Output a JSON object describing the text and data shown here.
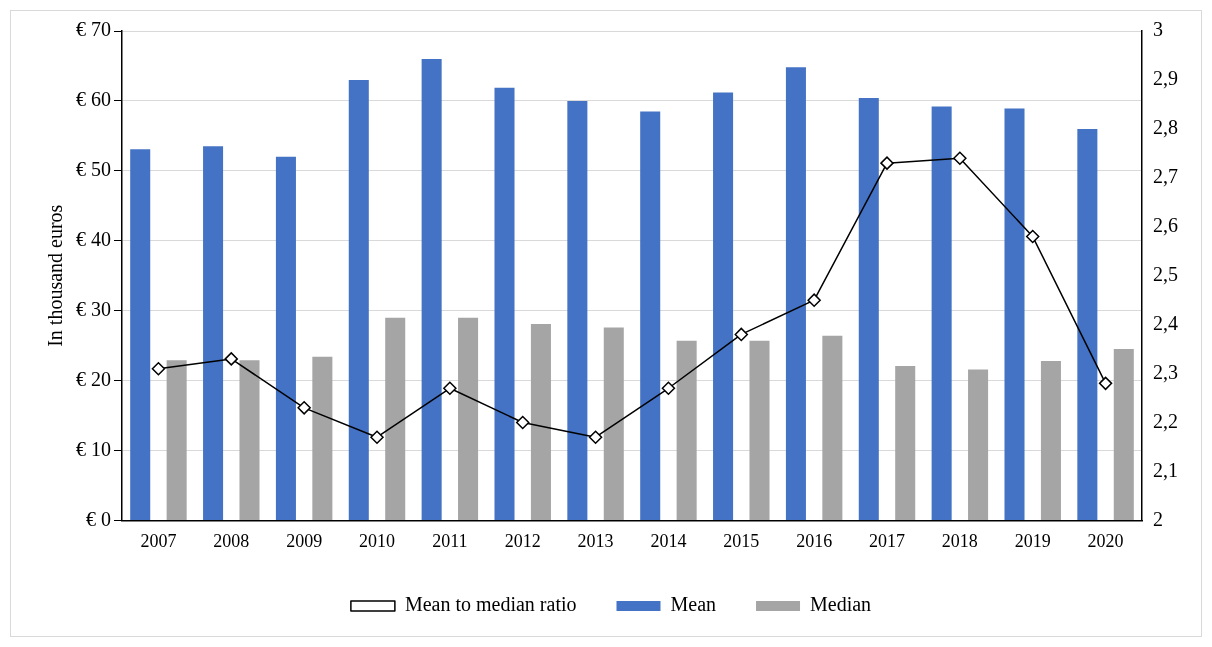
{
  "chart_data": {
    "type": "bar",
    "ylabel": "In thousand euros",
    "categories": [
      "2007",
      "2008",
      "2009",
      "2010",
      "2011",
      "2012",
      "2013",
      "2014",
      "2015",
      "2016",
      "2017",
      "2018",
      "2019",
      "2020"
    ],
    "series": [
      {
        "name": "Mean",
        "color": "#4472c4",
        "values": [
          53.1,
          53.5,
          52.0,
          63.0,
          66.0,
          61.9,
          60.0,
          58.5,
          61.2,
          64.8,
          60.4,
          59.2,
          58.9,
          56.0
        ]
      },
      {
        "name": "Median",
        "color": "#a5a5a5",
        "values": [
          22.9,
          22.9,
          23.4,
          29.0,
          29.0,
          28.1,
          27.6,
          25.7,
          25.7,
          26.4,
          22.1,
          21.6,
          22.8,
          24.5
        ]
      },
      {
        "name": "Mean to median ratio",
        "type": "line",
        "axis": "y2",
        "color": "#000000",
        "marker": "diamond",
        "values": [
          2.31,
          2.33,
          2.23,
          2.17,
          2.27,
          2.2,
          2.17,
          2.27,
          2.38,
          2.45,
          2.73,
          2.74,
          2.58,
          2.28
        ]
      }
    ],
    "ylim": [
      0,
      70
    ],
    "yticks": [
      {
        "value": 0,
        "label": "€ 0"
      },
      {
        "value": 10,
        "label": "€ 10"
      },
      {
        "value": 20,
        "label": "€ 20"
      },
      {
        "value": 30,
        "label": "€ 30"
      },
      {
        "value": 40,
        "label": "€ 40"
      },
      {
        "value": 50,
        "label": "€ 50"
      },
      {
        "value": 60,
        "label": "€ 60"
      },
      {
        "value": 70,
        "label": "€ 70"
      }
    ],
    "y2lim": [
      2,
      3
    ],
    "y2ticks": [
      2,
      {
        "value": 2.1,
        "label": "2,1"
      },
      {
        "value": 2.2,
        "label": "2,2"
      },
      {
        "value": 2.3,
        "label": "2,3"
      },
      {
        "value": 2.4,
        "label": "2,4"
      },
      {
        "value": 2.5,
        "label": "2,5"
      },
      {
        "value": 2.6,
        "label": "2,6"
      },
      {
        "value": 2.7,
        "label": "2,7"
      },
      {
        "value": 2.8,
        "label": "2,8"
      },
      {
        "value": 2.9,
        "label": "2,9"
      },
      3
    ],
    "grid": "y",
    "legend": "bottom"
  }
}
